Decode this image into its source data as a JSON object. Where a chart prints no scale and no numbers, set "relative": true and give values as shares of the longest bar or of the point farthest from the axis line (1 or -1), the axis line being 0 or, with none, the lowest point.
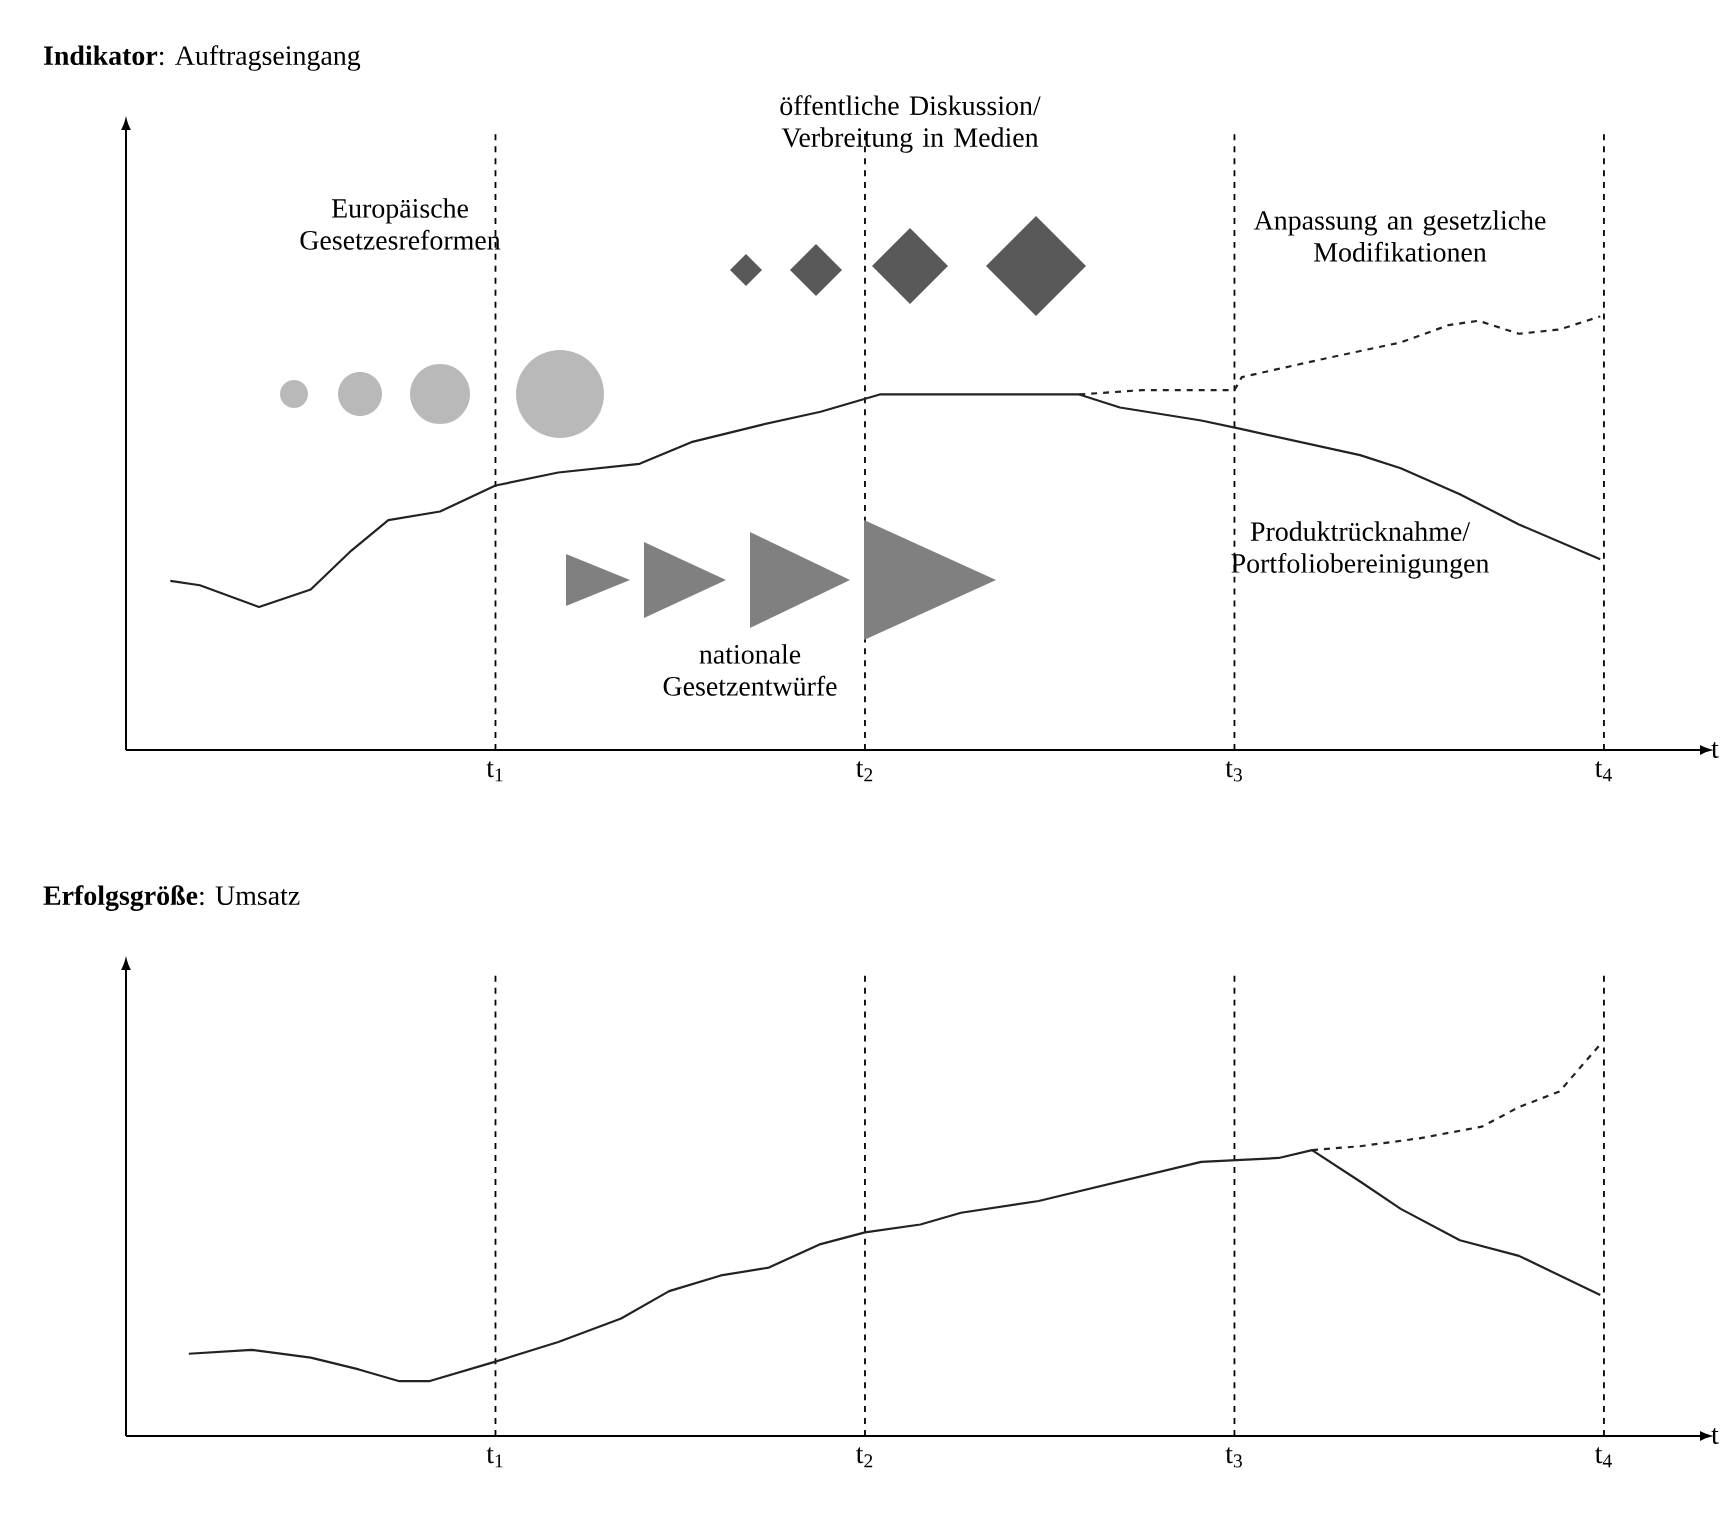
{
  "chart_data": [
    {
      "type": "line",
      "title": "**Indikator**: Auftragseingang",
      "xlabel": "t",
      "relative": true,
      "xlim": [
        0,
        4.26
      ],
      "xticks": [
        {
          "value": 1,
          "label": "t$_{1}$"
        },
        {
          "value": 2,
          "label": "t$_{2}$"
        },
        {
          "value": 3,
          "label": "t$_{3}$"
        },
        {
          "value": 4,
          "label": "t$_{4}$"
        }
      ],
      "grid": "x",
      "tick_labels": "x",
      "marker": "none",
      "annotations": [
        "Europäische Gesetzesreformen",
        "öffentliche Diskussion/ Verbreitung in Medien",
        "Anpassung an gesetzliche Modifikationen",
        "Produktrücknahme/ Portfoliobereinigungen",
        "nationale Gesetzentwürfe"
      ],
      "series": [
        {
          "color": "#222222",
          "line_style": "solid",
          "x": [
            0.12,
            0.2,
            0.36,
            0.5,
            0.61,
            0.71,
            0.85,
            1.0,
            1.17,
            1.39,
            1.53,
            1.72,
            1.88,
            2.04,
            2.2,
            2.37,
            2.58,
            2.69,
            2.91,
            3.02,
            3.18,
            3.34,
            3.45,
            3.61,
            3.77,
            3.99
          ],
          "values": [
            0.39,
            0.38,
            0.33,
            0.37,
            0.46,
            0.53,
            0.55,
            0.61,
            0.64,
            0.66,
            0.71,
            0.75,
            0.78,
            0.82,
            0.82,
            0.82,
            0.82,
            0.79,
            0.76,
            0.74,
            0.71,
            0.68,
            0.65,
            0.59,
            0.52,
            0.44
          ]
        },
        {
          "color": "#222222",
          "line_style": "dashed",
          "x": [
            2.58,
            2.75,
            2.91,
            3.0,
            3.02,
            3.23,
            3.45,
            3.58,
            3.66,
            3.77,
            3.88,
            3.99
          ],
          "values": [
            0.82,
            0.83,
            0.83,
            0.83,
            0.86,
            0.9,
            0.94,
            0.98,
            0.99,
            0.96,
            0.97,
            1.0
          ]
        }
      ]
    },
    {
      "type": "line",
      "title": "**Erfolgsgröße**: Umsatz",
      "xlabel": "t",
      "relative": true,
      "xlim": [
        0,
        4.26
      ],
      "xticks": [
        {
          "value": 1,
          "label": "t$_{1}$"
        },
        {
          "value": 2,
          "label": "t$_{2}$"
        },
        {
          "value": 3,
          "label": "t$_{3}$"
        },
        {
          "value": 4,
          "label": "t$_{4}$"
        }
      ],
      "grid": "x",
      "tick_labels": "x",
      "marker": "none",
      "series": [
        {
          "color": "#222222",
          "line_style": "solid",
          "x": [
            0.17,
            0.34,
            0.5,
            0.63,
            0.74,
            0.82,
            1.0,
            1.17,
            1.34,
            1.47,
            1.61,
            1.74,
            1.88,
            2.0,
            2.15,
            2.26,
            2.47,
            2.69,
            2.91,
            3.12,
            3.21,
            3.34,
            3.45,
            3.61,
            3.77,
            3.88,
            3.99
          ],
          "values": [
            0.21,
            0.22,
            0.2,
            0.17,
            0.14,
            0.14,
            0.19,
            0.24,
            0.3,
            0.37,
            0.41,
            0.43,
            0.49,
            0.52,
            0.54,
            0.57,
            0.6,
            0.65,
            0.7,
            0.71,
            0.73,
            0.65,
            0.58,
            0.5,
            0.46,
            0.41,
            0.36
          ]
        },
        {
          "color": "#222222",
          "line_style": "dashed",
          "x": [
            3.21,
            3.34,
            3.5,
            3.67,
            3.77,
            3.88,
            3.99
          ],
          "values": [
            0.73,
            0.74,
            0.76,
            0.79,
            0.84,
            0.88,
            1.0
          ]
        }
      ]
    }
  ]
}
